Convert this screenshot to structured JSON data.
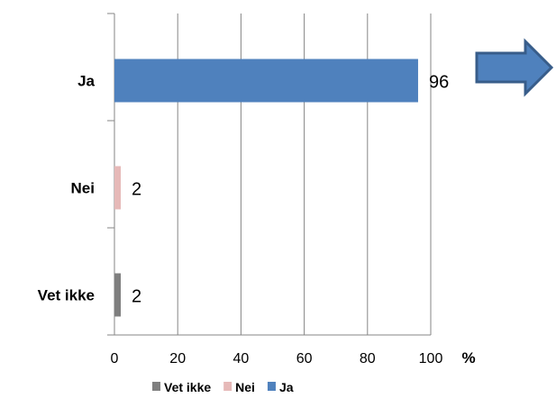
{
  "chart_data": {
    "type": "bar",
    "orientation": "horizontal",
    "categories": [
      "Ja",
      "Nei",
      "Vet ikke"
    ],
    "values": [
      96,
      2,
      2
    ],
    "data_labels": [
      "96",
      "2",
      "2"
    ],
    "colors": [
      "#4f81bd",
      "#e6b9b8",
      "#7f7f7f"
    ],
    "xlim": [
      0,
      100
    ],
    "x_ticks": [
      "0",
      "20",
      "40",
      "60",
      "80",
      "100"
    ],
    "x_tick_values": [
      0,
      20,
      40,
      60,
      80,
      100
    ],
    "x_unit": "%",
    "grid": true,
    "legend": {
      "placement": "bottom",
      "entries": [
        {
          "name": "Vet ikke",
          "color": "#7f7f7f"
        },
        {
          "name": "Nei",
          "color": "#e6b9b8"
        },
        {
          "name": "Ja",
          "color": "#4f81bd"
        }
      ]
    },
    "arrow": {
      "color": "#4f81bd",
      "stroke": "#385d8a",
      "direction": "right"
    }
  }
}
